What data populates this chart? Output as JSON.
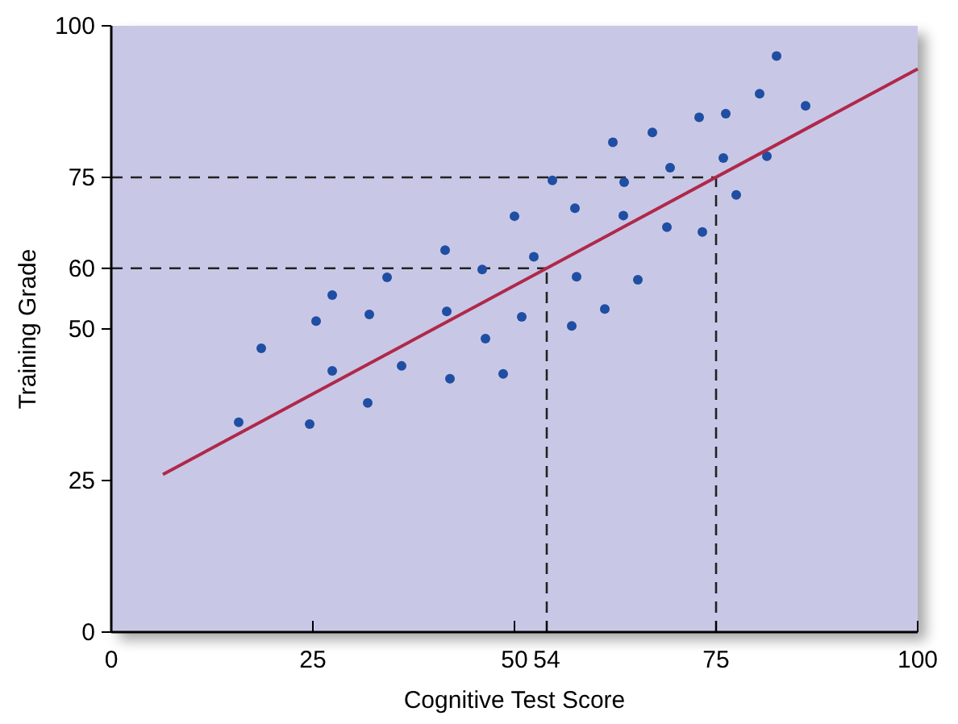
{
  "chart_data": {
    "type": "scatter",
    "xlabel": "Cognitive Test Score",
    "ylabel": "Training Grade",
    "xlim": [
      0,
      100
    ],
    "ylim": [
      0,
      100
    ],
    "xticks": [
      0,
      25,
      50,
      54,
      75,
      100
    ],
    "yticks": [
      0,
      25,
      50,
      60,
      75,
      100
    ],
    "grid": false,
    "series": [
      {
        "marker": "circle",
        "color": "#1f4ea3",
        "x": [
          15.8,
          18.6,
          24.6,
          25.4,
          27.4,
          27.4,
          31.8,
          32,
          34.2,
          36,
          41.4,
          41.6,
          42,
          46,
          46.4,
          48.6,
          50,
          50.9,
          52.4,
          54.7,
          57.5,
          57.7,
          57.1,
          61.2,
          62.2,
          63.6,
          63.5,
          65.3,
          67.1,
          69.3,
          68.9,
          72.9,
          73.3,
          76.2,
          75.9,
          77.5,
          80.4,
          81.3,
          82.5,
          86.1
        ],
        "values": [
          34.6,
          46.8,
          34.3,
          51.3,
          55.6,
          43.1,
          37.8,
          52.4,
          58.5,
          43.9,
          63,
          52.9,
          41.8,
          59.8,
          48.4,
          42.6,
          68.6,
          52,
          61.9,
          74.5,
          69.9,
          58.6,
          50.5,
          53.3,
          80.8,
          74.2,
          68.7,
          58.1,
          82.4,
          76.6,
          66.8,
          84.9,
          66,
          85.5,
          78.2,
          72.1,
          88.8,
          78.5,
          95,
          86.8
        ]
      },
      {
        "type": "line",
        "color": "#b0284a",
        "x": [
          6.4,
          100
        ],
        "values": [
          26,
          92.9
        ]
      }
    ],
    "ref_lines": [
      {
        "axis": "x",
        "value": 54,
        "line_style": "dashed",
        "color": "#222222"
      },
      {
        "axis": "x",
        "value": 75,
        "line_style": "dashed",
        "color": "#222222"
      },
      {
        "axis": "y",
        "value": 60,
        "line_style": "dashed",
        "color": "#222222"
      },
      {
        "axis": "y",
        "value": 75,
        "line_style": "dashed",
        "color": "#222222"
      }
    ]
  }
}
